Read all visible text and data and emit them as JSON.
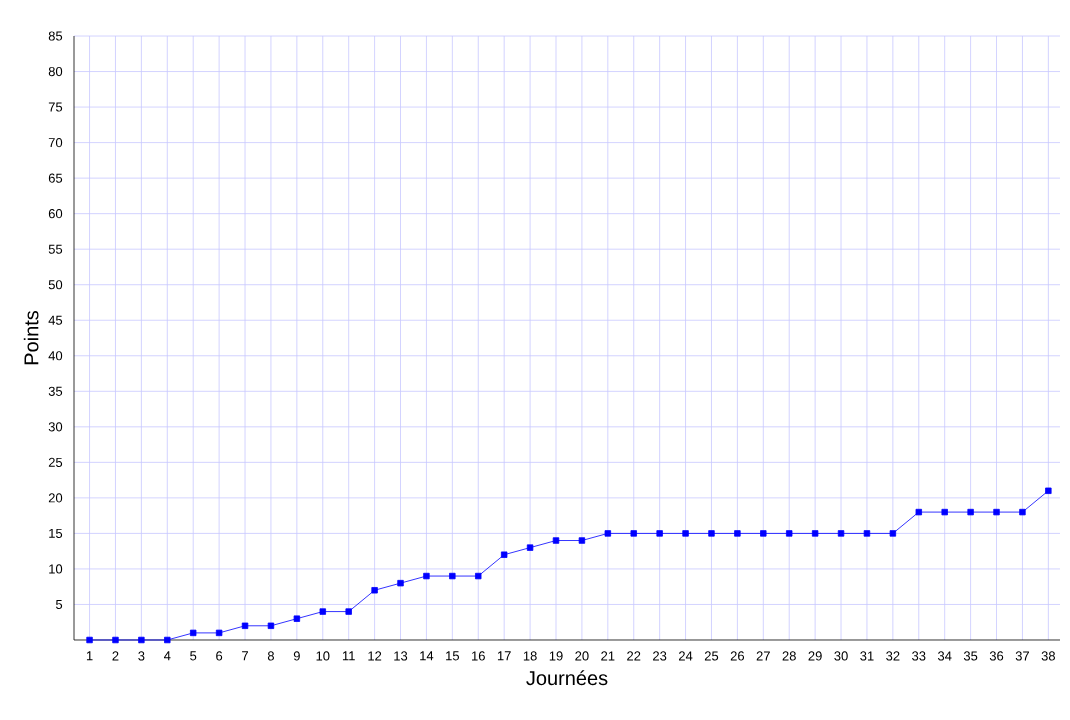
{
  "chart_data": {
    "type": "line",
    "xlabel": "Journées",
    "ylabel": "Points",
    "categories": [
      "1",
      "2",
      "3",
      "4",
      "5",
      "6",
      "7",
      "8",
      "9",
      "10",
      "11",
      "12",
      "13",
      "14",
      "15",
      "16",
      "17",
      "18",
      "19",
      "20",
      "21",
      "22",
      "23",
      "24",
      "25",
      "26",
      "27",
      "28",
      "29",
      "30",
      "31",
      "32",
      "33",
      "34",
      "35",
      "36",
      "37",
      "38"
    ],
    "series": [
      {
        "color": "#0000ff",
        "values": [
          0,
          0,
          0,
          0,
          1,
          1,
          2,
          2,
          3,
          4,
          4,
          7,
          8,
          9,
          9,
          9,
          12,
          13,
          14,
          14,
          15,
          15,
          15,
          15,
          15,
          15,
          15,
          15,
          15,
          15,
          15,
          15,
          18,
          18,
          18,
          18,
          18,
          21
        ]
      }
    ],
    "ylim": [
      0,
      85
    ],
    "yticks": [
      5,
      10,
      15,
      20,
      25,
      30,
      35,
      40,
      45,
      50,
      55,
      60,
      65,
      70,
      75,
      80,
      85
    ],
    "grid": true,
    "marker": "square",
    "line_style": "solid"
  }
}
